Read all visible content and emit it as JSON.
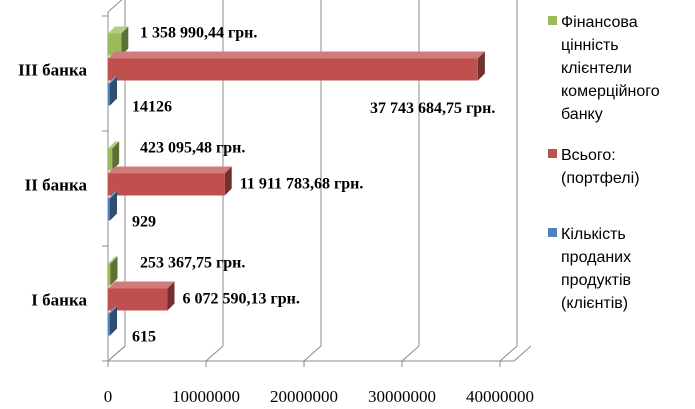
{
  "chart_data": {
    "type": "bar",
    "orientation": "horizontal",
    "style": "3d-clustered",
    "categories": [
      "I банка",
      "II банка",
      "III банка"
    ],
    "xlim": [
      0,
      40000000
    ],
    "xticks": [
      "0",
      "10000000",
      "20000000",
      "30000000",
      "40000000"
    ],
    "grid": true,
    "legend_position": "right",
    "series": [
      {
        "name": "Фінансова цінність клієнтели комерційного банку",
        "legend_lines": [
          "Фінансова",
          "цінність",
          "клієнтели",
          "комерційного",
          "банку"
        ],
        "color": "#9BBB59",
        "values": [
          253367.75,
          423095.48,
          1358990.44
        ],
        "labels": [
          "253 367,75 грн.",
          "423 095,48 грн.",
          "1 358 990,44 грн."
        ]
      },
      {
        "name": "Всього: (портфелі)",
        "legend_lines": [
          "Всього:",
          "(портфелі)"
        ],
        "color": "#C0504D",
        "values": [
          6072590.13,
          11911783.68,
          37743684.75
        ],
        "labels": [
          "6 072 590,13 грн.",
          "11 911 783,68 грн.",
          "37 743 684,75 грн."
        ]
      },
      {
        "name": "Кількість проданих продуктів (клієнтів)",
        "legend_lines": [
          "Кількість",
          "проданих",
          "продуктів",
          "(клієнтів)"
        ],
        "color": "#4F81BD",
        "values": [
          615,
          929,
          14126
        ],
        "labels": [
          "615",
          "929",
          "14126"
        ]
      }
    ]
  }
}
